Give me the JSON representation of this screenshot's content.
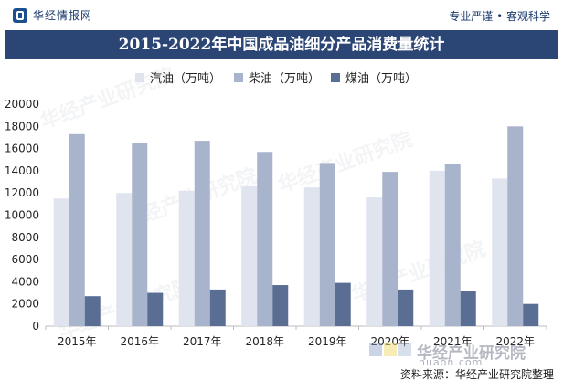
{
  "header": {
    "brand": "华经情报网",
    "slogan": "专业严谨 • 客观科学"
  },
  "title": "2015-2022年中国成品油细分产品消费量统计",
  "source_text": "资料来源：华经产业研究院整理",
  "watermark": {
    "text": "华经产业研究院",
    "url": "huaon.com"
  },
  "colors": {
    "title_bg": "#2b4574",
    "brand": "#1b3b6f"
  },
  "chart_data": {
    "type": "bar",
    "title": "2015-2022年中国成品油细分产品消费量统计",
    "categories": [
      "2015年",
      "2016年",
      "2017年",
      "2018年",
      "2019年",
      "2020年",
      "2021年",
      "2022年"
    ],
    "series": [
      {
        "name": "汽油（万吨）",
        "color": "#dfe4ee",
        "values": [
          11500,
          12000,
          12200,
          12600,
          12500,
          11600,
          14000,
          13300
        ]
      },
      {
        "name": "柴油（万吨）",
        "color": "#a8b4cc",
        "values": [
          17300,
          16500,
          16700,
          15700,
          14700,
          13900,
          14600,
          18000
        ]
      },
      {
        "name": "煤油（万吨）",
        "color": "#5a6d92",
        "values": [
          2700,
          3000,
          3300,
          3700,
          3900,
          3300,
          3200,
          2000
        ]
      }
    ],
    "ylim": [
      0,
      20000
    ],
    "yticks": [
      0,
      2000,
      4000,
      6000,
      8000,
      10000,
      12000,
      14000,
      16000,
      18000,
      20000
    ],
    "xlabel": "",
    "ylabel": "",
    "legend_position": "top-center",
    "grid": false
  }
}
